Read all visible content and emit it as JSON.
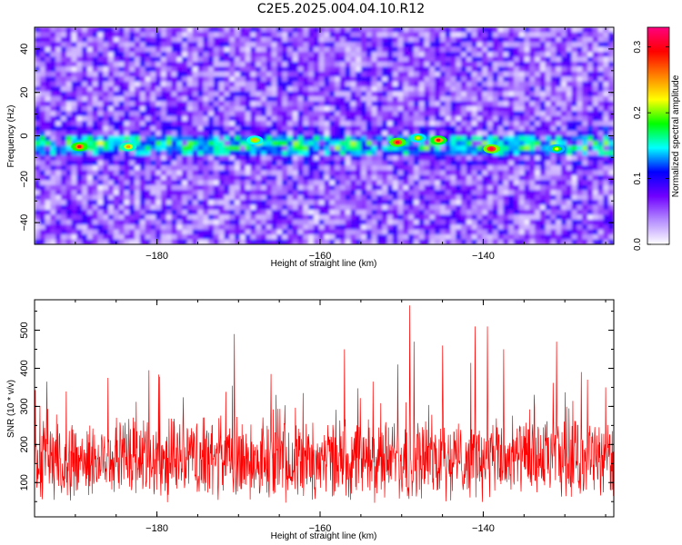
{
  "title": "C2E5.2025.004.04.10.R12",
  "chart_data": [
    {
      "type": "heatmap",
      "xlabel": "Height of straight line (km)",
      "ylabel": "Frequency (Hz)",
      "xlim": [
        -195,
        -124
      ],
      "ylim": [
        -50,
        50
      ],
      "xticks": [
        -180,
        -160,
        -140
      ],
      "yticks": [
        -40,
        -20,
        0,
        20,
        40
      ],
      "colorbar": {
        "label": "Normalized spectral amplitude",
        "range": [
          0.0,
          0.33
        ],
        "ticks": [
          0.0,
          0.1,
          0.2,
          0.3
        ],
        "colormap": [
          "#ffffff",
          "#b48cff",
          "#7000ff",
          "#0000ff",
          "#00ffff",
          "#00ff00",
          "#ffff00",
          "#ff8000",
          "#ff0000",
          "#ff0080"
        ]
      },
      "ridge": {
        "frequency_hz": -4,
        "description": "high-amplitude band centered near -4 Hz spanning full height range"
      },
      "hot_spots": [
        {
          "x": -189.5,
          "y": -5,
          "value": 0.3
        },
        {
          "x": -183.5,
          "y": -5,
          "value": 0.25
        },
        {
          "x": -168,
          "y": -2,
          "value": 0.24
        },
        {
          "x": -150.5,
          "y": -3,
          "value": 0.31
        },
        {
          "x": -148,
          "y": -1,
          "value": 0.23
        },
        {
          "x": -145.5,
          "y": -2,
          "value": 0.29
        },
        {
          "x": -139,
          "y": -6,
          "value": 0.32
        },
        {
          "x": -131,
          "y": -6,
          "value": 0.22
        }
      ]
    },
    {
      "type": "line",
      "xlabel": "Height of straight line (km)",
      "ylabel": "SNR (10 * v/v)",
      "xlim": [
        -195,
        -124
      ],
      "ylim": [
        10,
        580
      ],
      "xticks": [
        -180,
        -160,
        -140
      ],
      "yticks": [
        100,
        200,
        300,
        400,
        500
      ],
      "series": [
        {
          "color": "#ff0000",
          "baseline": 160,
          "spikes": [
            {
              "x": -193.5,
              "y": 365
            },
            {
              "x": -186,
              "y": 375
            },
            {
              "x": -181,
              "y": 395
            },
            {
              "x": -170.5,
              "y": 490
            },
            {
              "x": -166,
              "y": 385
            },
            {
              "x": -157,
              "y": 450
            },
            {
              "x": -153.5,
              "y": 365
            },
            {
              "x": -150.5,
              "y": 410
            },
            {
              "x": -149,
              "y": 565
            },
            {
              "x": -148.5,
              "y": 470
            },
            {
              "x": -145,
              "y": 460
            },
            {
              "x": -141,
              "y": 510
            },
            {
              "x": -139.5,
              "y": 510
            },
            {
              "x": -137.5,
              "y": 450
            },
            {
              "x": -131,
              "y": 470
            },
            {
              "x": -128,
              "y": 390
            },
            {
              "x": -125,
              "y": 350
            }
          ]
        }
      ]
    }
  ]
}
